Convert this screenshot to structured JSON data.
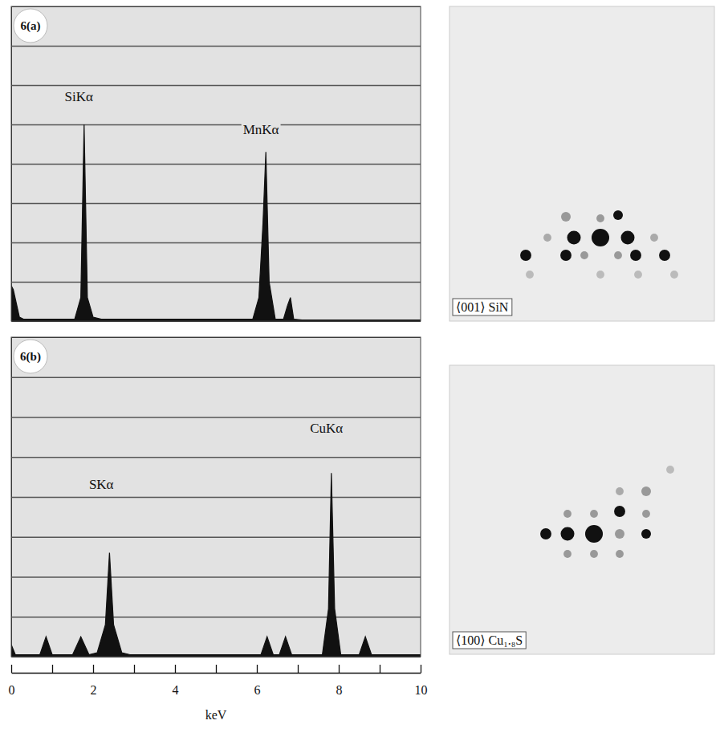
{
  "chart_data": [
    {
      "type": "area",
      "label": "6(a)",
      "color": "#111111",
      "x": [
        0,
        0.05,
        0.2,
        0.3,
        1.55,
        1.7,
        1.78,
        1.86,
        2.0,
        2.2,
        5.9,
        6.05,
        6.15,
        6.22,
        6.3,
        6.45,
        6.65,
        6.75,
        6.82,
        6.9,
        7.1,
        10
      ],
      "values": [
        0.9,
        0.8,
        0.1,
        0.05,
        0.05,
        0.6,
        5.0,
        0.6,
        0.1,
        0.05,
        0.05,
        0.6,
        2.5,
        4.3,
        1.0,
        0.05,
        0.05,
        0.4,
        0.6,
        0.05,
        0.03,
        0.03
      ],
      "xlim": [
        0,
        10
      ],
      "ylim": [
        0,
        8
      ],
      "yticks": [
        1,
        2,
        3,
        4,
        5,
        6,
        7
      ],
      "grid": true,
      "tick_labels": false,
      "annotations": [
        {
          "text": "SiKα",
          "x": 1.65,
          "y": 5.6
        },
        {
          "text": "MnKα",
          "x": 6.1,
          "y": 4.75
        }
      ]
    },
    {
      "type": "scatter",
      "title": "⟨001⟩ SiN",
      "x": [
        0,
        -3.3,
        3.4,
        -4.3,
        2.2,
        0,
        -6.6,
        6.7,
        -9.3,
        -4.3,
        -2.0,
        2.2,
        4.4,
        8.0,
        -8.8,
        0,
        4.7,
        9.2
      ],
      "values": [
        0,
        0,
        0,
        2.6,
        2.8,
        2.4,
        0,
        0,
        -2.2,
        -2.2,
        -2.2,
        -2.2,
        -2.2,
        -2.2,
        -4.6,
        -4.6,
        -4.6,
        -4.6
      ],
      "sizes": [
        10,
        6,
        6,
        3,
        3,
        2,
        2,
        2,
        4,
        4,
        2,
        2,
        4,
        4,
        2,
        2,
        2,
        2
      ],
      "colors": [
        "#111111",
        "#111111",
        "#111111",
        "#999999",
        "#111111",
        "#999999",
        "#aaaaaa",
        "#aaaaaa",
        "#111111",
        "#111111",
        "#999999",
        "#999999",
        "#111111",
        "#111111",
        "#bbbbbb",
        "#bbbbbb",
        "#bbbbbb",
        "#bbbbbb"
      ],
      "xlim": [
        -18.8,
        14.2
      ],
      "ylim": [
        -10.4,
        28.8
      ],
      "tick_labels": false
    },
    {
      "type": "area",
      "label": "6(b)",
      "color": "#111111",
      "x": [
        0,
        0.1,
        0.3,
        0.7,
        0.85,
        1.0,
        1.3,
        1.5,
        1.7,
        1.9,
        2.1,
        2.3,
        2.4,
        2.5,
        2.7,
        2.9,
        6.1,
        6.25,
        6.4,
        6.55,
        6.7,
        6.85,
        7.0,
        7.6,
        7.75,
        7.82,
        7.9,
        8.05,
        8.5,
        8.65,
        8.8,
        9.0,
        10
      ],
      "values": [
        0.3,
        0.05,
        0.05,
        0.05,
        0.5,
        0.05,
        0.05,
        0.05,
        0.5,
        0.05,
        0.1,
        0.8,
        2.6,
        0.8,
        0.1,
        0.05,
        0.05,
        0.5,
        0.05,
        0.05,
        0.5,
        0.05,
        0.05,
        0.05,
        1.2,
        4.6,
        1.2,
        0.05,
        0.05,
        0.5,
        0.05,
        0.05,
        0.05
      ],
      "xlim": [
        0,
        10
      ],
      "ylim": [
        0,
        8
      ],
      "yticks": [
        1,
        2,
        3,
        4,
        5,
        6,
        7
      ],
      "grid": true,
      "tick_labels": "x",
      "xticks": [
        0,
        2,
        4,
        6,
        8,
        10
      ],
      "minor_xticks": [
        1,
        3,
        5,
        7,
        9
      ],
      "x_label": "keV",
      "annotations": [
        {
          "text": "SKα",
          "x": 2.2,
          "y": 4.2
        },
        {
          "text": "CuKα",
          "x": 7.7,
          "y": 5.6
        }
      ]
    },
    {
      "type": "scatter",
      "title": "⟨100⟩ Cu₁.₈S",
      "x": [
        0,
        -3.3,
        -6.0,
        3.2,
        6.5,
        -3.3,
        0,
        3.2,
        6.5,
        -3.3,
        0,
        3.2,
        3.2,
        6.5,
        9.5
      ],
      "values": [
        0,
        0,
        0,
        0,
        0,
        2.5,
        2.5,
        2.8,
        2.5,
        -2.5,
        -2.5,
        -2.5,
        5.3,
        5.3,
        8.0
      ],
      "sizes": [
        10,
        6,
        4,
        3,
        3,
        2,
        2,
        4,
        2,
        2,
        2,
        2,
        2,
        3,
        2
      ],
      "colors": [
        "#111111",
        "#111111",
        "#111111",
        "#999999",
        "#111111",
        "#999999",
        "#999999",
        "#111111",
        "#999999",
        "#999999",
        "#999999",
        "#999999",
        "#aaaaaa",
        "#999999",
        "#bbbbbb"
      ],
      "xlim": [
        -18,
        15
      ],
      "ylim": [
        -15,
        21
      ],
      "tick_labels": false
    }
  ]
}
